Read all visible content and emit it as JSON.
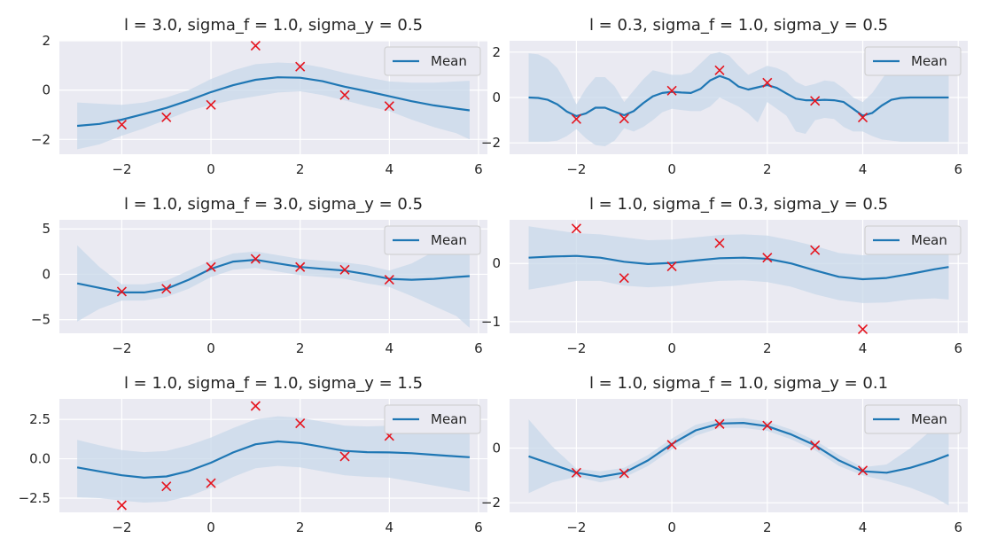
{
  "colors": {
    "background": "#eaeaf2",
    "grid": "#ffffff",
    "mean": "#1f77b4",
    "band": "#c8d8ea",
    "points": "#e6141e",
    "legend_bg": "#eaeaf2",
    "legend_border": "#cccccc"
  },
  "chart_data": [
    {
      "type": "line",
      "title": "l = 3.0, sigma_f = 1.0, sigma_y = 0.5",
      "xlim": [
        -3.4,
        6.2
      ],
      "ylim": [
        -2.6,
        2.0
      ],
      "xticks": [
        -2,
        0,
        2,
        4,
        6
      ],
      "yticks": [
        -2,
        0,
        2
      ],
      "legend": {
        "position": "top-right",
        "entries": [
          "Mean"
        ]
      },
      "x": [
        -3.0,
        -2.5,
        -2.0,
        -1.5,
        -1.0,
        -0.5,
        0.0,
        0.5,
        1.0,
        1.5,
        2.0,
        2.5,
        3.0,
        3.5,
        4.0,
        4.5,
        5.0,
        5.5,
        5.8
      ],
      "series": [
        {
          "name": "Mean",
          "values": [
            -1.45,
            -1.37,
            -1.2,
            -0.97,
            -0.72,
            -0.42,
            -0.08,
            0.2,
            0.42,
            0.52,
            0.5,
            0.36,
            0.14,
            -0.05,
            -0.25,
            -0.45,
            -0.62,
            -0.75,
            -0.82
          ]
        }
      ],
      "band_upper": [
        -0.5,
        -0.55,
        -0.6,
        -0.5,
        -0.3,
        0.0,
        0.45,
        0.8,
        1.05,
        1.12,
        1.08,
        0.92,
        0.7,
        0.52,
        0.35,
        0.3,
        0.3,
        0.35,
        0.38
      ],
      "band_lower": [
        -2.4,
        -2.2,
        -1.85,
        -1.55,
        -1.2,
        -0.85,
        -0.6,
        -0.4,
        -0.25,
        -0.1,
        -0.05,
        -0.2,
        -0.42,
        -0.65,
        -0.85,
        -1.2,
        -1.5,
        -1.75,
        -2.0
      ],
      "points": {
        "x": [
          -2,
          -1,
          0,
          1,
          2,
          3,
          4
        ],
        "y": [
          -1.4,
          -1.1,
          -0.6,
          1.8,
          0.95,
          -0.2,
          -0.65
        ]
      }
    },
    {
      "type": "line",
      "title": "l = 0.3, sigma_f = 1.0, sigma_y = 0.5",
      "xlim": [
        -3.4,
        6.2
      ],
      "ylim": [
        -2.5,
        2.5
      ],
      "xticks": [
        -2,
        0,
        2,
        4,
        6
      ],
      "yticks": [
        -2,
        0,
        2
      ],
      "legend": {
        "position": "top-right",
        "entries": [
          "Mean"
        ]
      },
      "x": [
        -3.0,
        -2.8,
        -2.6,
        -2.4,
        -2.2,
        -2.0,
        -1.8,
        -1.6,
        -1.4,
        -1.2,
        -1.0,
        -0.8,
        -0.6,
        -0.4,
        -0.2,
        0.0,
        0.2,
        0.4,
        0.6,
        0.8,
        1.0,
        1.2,
        1.4,
        1.6,
        1.8,
        2.0,
        2.2,
        2.4,
        2.6,
        2.8,
        3.0,
        3.2,
        3.4,
        3.6,
        3.8,
        4.0,
        4.2,
        4.4,
        4.6,
        4.8,
        5.0,
        5.2,
        5.4,
        5.6,
        5.8
      ],
      "series": [
        {
          "name": "Mean",
          "values": [
            0.0,
            -0.02,
            -0.1,
            -0.3,
            -0.62,
            -0.82,
            -0.7,
            -0.45,
            -0.45,
            -0.62,
            -0.78,
            -0.6,
            -0.25,
            0.05,
            0.2,
            0.25,
            0.22,
            0.2,
            0.38,
            0.75,
            0.95,
            0.8,
            0.48,
            0.35,
            0.45,
            0.55,
            0.42,
            0.18,
            -0.05,
            -0.12,
            -0.12,
            -0.1,
            -0.12,
            -0.2,
            -0.5,
            -0.8,
            -0.68,
            -0.35,
            -0.1,
            -0.02,
            0.0,
            0.0,
            0.0,
            0.0,
            0.0
          ]
        }
      ],
      "band_upper": [
        1.95,
        1.9,
        1.7,
        1.3,
        0.6,
        -0.3,
        0.4,
        0.9,
        0.9,
        0.5,
        -0.2,
        0.3,
        0.8,
        1.2,
        1.1,
        1.0,
        1.0,
        1.1,
        1.5,
        1.9,
        2.0,
        1.85,
        1.4,
        1.0,
        1.2,
        1.4,
        1.3,
        1.1,
        0.7,
        0.5,
        0.6,
        0.75,
        0.7,
        0.4,
        0.0,
        -0.2,
        0.2,
        0.8,
        1.4,
        1.8,
        1.95,
        1.95,
        1.95,
        1.95,
        1.95
      ],
      "band_lower": [
        -1.95,
        -1.95,
        -1.95,
        -1.9,
        -1.7,
        -1.4,
        -1.8,
        -2.1,
        -2.15,
        -1.9,
        -1.35,
        -1.5,
        -1.3,
        -1.0,
        -0.65,
        -0.5,
        -0.55,
        -0.6,
        -0.6,
        -0.4,
        0.0,
        -0.2,
        -0.4,
        -0.7,
        -1.1,
        -0.2,
        -0.5,
        -0.8,
        -1.5,
        -1.6,
        -1.0,
        -0.9,
        -0.95,
        -1.3,
        -1.5,
        -1.5,
        -1.7,
        -1.85,
        -1.9,
        -1.95,
        -1.95,
        -1.95,
        -1.95,
        -1.95,
        -1.95
      ],
      "points": {
        "x": [
          -2,
          -1,
          0,
          1,
          2,
          3,
          4
        ],
        "y": [
          -0.95,
          -0.93,
          0.3,
          1.2,
          0.65,
          -0.15,
          -0.88
        ]
      }
    },
    {
      "type": "line",
      "title": "l = 1.0, sigma_f = 3.0, sigma_y = 0.5",
      "xlim": [
        -3.4,
        6.2
      ],
      "ylim": [
        -6.5,
        6.0
      ],
      "xticks": [
        -2,
        0,
        2,
        4,
        6
      ],
      "yticks": [
        -5,
        0,
        5
      ],
      "legend": {
        "position": "top-right",
        "entries": [
          "Mean"
        ]
      },
      "x": [
        -3.0,
        -2.5,
        -2.0,
        -1.5,
        -1.0,
        -0.5,
        0.0,
        0.5,
        1.0,
        1.5,
        2.0,
        2.5,
        3.0,
        3.5,
        4.0,
        4.5,
        5.0,
        5.5,
        5.8
      ],
      "series": [
        {
          "name": "Mean",
          "values": [
            -1.0,
            -1.5,
            -2.0,
            -2.0,
            -1.6,
            -0.6,
            0.6,
            1.4,
            1.6,
            1.2,
            0.8,
            0.6,
            0.4,
            0.0,
            -0.5,
            -0.6,
            -0.5,
            -0.3,
            -0.2
          ]
        }
      ],
      "band_upper": [
        3.2,
        0.8,
        -1.1,
        -1.1,
        -0.7,
        0.4,
        1.5,
        2.3,
        2.5,
        2.1,
        1.7,
        1.5,
        1.3,
        1.0,
        0.4,
        1.2,
        2.5,
        4.0,
        4.8
      ],
      "band_lower": [
        -5.2,
        -3.8,
        -2.9,
        -2.9,
        -2.5,
        -1.6,
        -0.3,
        0.5,
        0.7,
        0.3,
        -0.1,
        -0.3,
        -0.5,
        -1.0,
        -1.4,
        -2.4,
        -3.5,
        -4.6,
        -5.9
      ],
      "points": {
        "x": [
          -2,
          -1,
          0,
          1,
          2,
          3,
          4
        ],
        "y": [
          -1.9,
          -1.6,
          0.8,
          1.7,
          0.8,
          0.5,
          -0.6
        ]
      }
    },
    {
      "type": "line",
      "title": "l = 1.0, sigma_f = 0.3, sigma_y = 0.5",
      "xlim": [
        -3.4,
        6.2
      ],
      "ylim": [
        -1.2,
        0.75
      ],
      "xticks": [
        -2,
        0,
        2,
        4,
        6
      ],
      "yticks": [
        -1,
        0
      ],
      "legend": {
        "position": "top-right",
        "entries": [
          "Mean"
        ]
      },
      "x": [
        -3.0,
        -2.5,
        -2.0,
        -1.5,
        -1.0,
        -0.5,
        0.0,
        0.5,
        1.0,
        1.5,
        2.0,
        2.5,
        3.0,
        3.5,
        4.0,
        4.5,
        5.0,
        5.5,
        5.8
      ],
      "series": [
        {
          "name": "Mean",
          "values": [
            0.1,
            0.12,
            0.13,
            0.1,
            0.03,
            -0.01,
            0.01,
            0.05,
            0.09,
            0.1,
            0.08,
            0.0,
            -0.12,
            -0.23,
            -0.27,
            -0.25,
            -0.18,
            -0.1,
            -0.06
          ]
        }
      ],
      "band_upper": [
        0.64,
        0.58,
        0.52,
        0.5,
        0.45,
        0.4,
        0.41,
        0.45,
        0.49,
        0.5,
        0.48,
        0.4,
        0.3,
        0.18,
        0.14,
        0.17,
        0.27,
        0.42,
        0.5
      ],
      "band_lower": [
        -0.45,
        -0.38,
        -0.3,
        -0.3,
        -0.38,
        -0.41,
        -0.39,
        -0.34,
        -0.3,
        -0.29,
        -0.32,
        -0.4,
        -0.53,
        -0.63,
        -0.68,
        -0.67,
        -0.62,
        -0.6,
        -0.62
      ],
      "points": {
        "x": [
          -2,
          -1,
          0,
          1,
          2,
          3,
          4
        ],
        "y": [
          0.6,
          -0.25,
          -0.05,
          0.35,
          0.1,
          0.23,
          -1.13
        ]
      }
    },
    {
      "type": "line",
      "title": "l = 1.0, sigma_f = 1.0, sigma_y = 1.5",
      "xlim": [
        -3.4,
        6.2
      ],
      "ylim": [
        -3.4,
        3.8
      ],
      "xticks": [
        -2,
        0,
        2,
        4,
        6
      ],
      "yticks": [
        -2.5,
        0.0,
        2.5
      ],
      "legend": {
        "position": "top-right",
        "entries": [
          "Mean"
        ]
      },
      "x": [
        -3.0,
        -2.5,
        -2.0,
        -1.5,
        -1.0,
        -0.5,
        0.0,
        0.5,
        1.0,
        1.5,
        2.0,
        2.5,
        3.0,
        3.5,
        4.0,
        4.5,
        5.0,
        5.5,
        5.8
      ],
      "series": [
        {
          "name": "Mean",
          "values": [
            -0.55,
            -0.8,
            -1.05,
            -1.2,
            -1.12,
            -0.78,
            -0.25,
            0.4,
            0.92,
            1.1,
            1.0,
            0.75,
            0.5,
            0.42,
            0.4,
            0.35,
            0.25,
            0.15,
            0.1
          ]
        }
      ],
      "band_upper": [
        1.2,
        0.85,
        0.55,
        0.42,
        0.5,
        0.85,
        1.35,
        1.95,
        2.5,
        2.7,
        2.6,
        2.35,
        2.1,
        2.05,
        2.1,
        2.25,
        2.35,
        2.4,
        2.45
      ],
      "band_lower": [
        -2.45,
        -2.5,
        -2.65,
        -2.78,
        -2.72,
        -2.38,
        -1.85,
        -1.15,
        -0.6,
        -0.45,
        -0.55,
        -0.8,
        -1.05,
        -1.15,
        -1.2,
        -1.45,
        -1.7,
        -1.95,
        -2.1
      ],
      "points": {
        "x": [
          -2,
          -1,
          0,
          1,
          2,
          3,
          4
        ],
        "y": [
          -2.95,
          -1.75,
          -1.55,
          3.35,
          2.25,
          0.15,
          1.45
        ]
      }
    },
    {
      "type": "line",
      "title": "l = 1.0, sigma_f = 1.0, sigma_y = 0.1",
      "xlim": [
        -3.4,
        6.2
      ],
      "ylim": [
        -2.35,
        1.8
      ],
      "xticks": [
        -2,
        0,
        2,
        4,
        6
      ],
      "yticks": [
        -2,
        0
      ],
      "legend": {
        "position": "top-right",
        "entries": [
          "Mean"
        ]
      },
      "x": [
        -3.0,
        -2.5,
        -2.0,
        -1.5,
        -1.0,
        -0.5,
        0.0,
        0.5,
        1.0,
        1.5,
        2.0,
        2.5,
        3.0,
        3.5,
        4.0,
        4.5,
        5.0,
        5.5,
        5.8
      ],
      "series": [
        {
          "name": "Mean",
          "values": [
            -0.3,
            -0.6,
            -0.9,
            -1.05,
            -0.9,
            -0.45,
            0.15,
            0.65,
            0.9,
            0.92,
            0.8,
            0.5,
            0.1,
            -0.45,
            -0.85,
            -0.9,
            -0.72,
            -0.45,
            -0.25
          ]
        }
      ],
      "band_upper": [
        1.05,
        0.05,
        -0.75,
        -0.85,
        -0.72,
        -0.25,
        0.35,
        0.85,
        1.06,
        1.1,
        0.97,
        0.68,
        0.28,
        -0.25,
        -0.7,
        -0.6,
        0.0,
        0.75,
        1.25
      ],
      "band_lower": [
        -1.65,
        -1.25,
        -1.05,
        -1.25,
        -1.08,
        -0.65,
        -0.05,
        0.45,
        0.74,
        0.74,
        0.63,
        0.32,
        -0.08,
        -0.65,
        -1.0,
        -1.2,
        -1.45,
        -1.8,
        -2.1
      ],
      "points": {
        "x": [
          -2,
          -1,
          0,
          1,
          2,
          3,
          4
        ],
        "y": [
          -0.9,
          -0.92,
          0.12,
          0.88,
          0.82,
          0.1,
          -0.82
        ]
      }
    }
  ]
}
